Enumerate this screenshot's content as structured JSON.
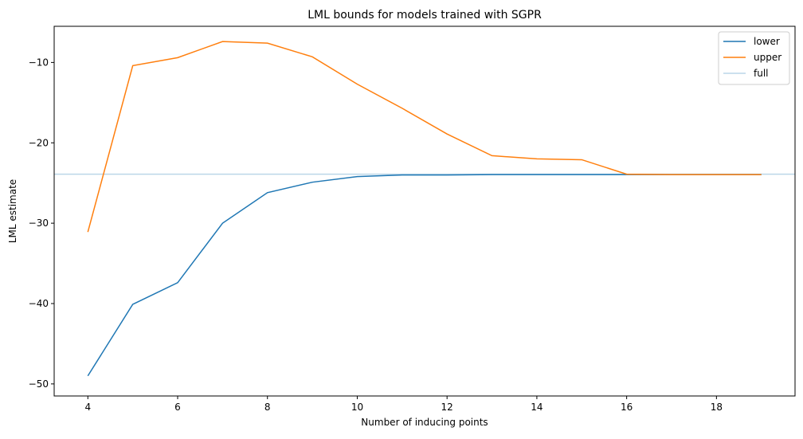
{
  "chart_data": {
    "type": "line",
    "title": "LML bounds for models trained with SGPR",
    "xlabel": "Number of inducing points",
    "ylabel": "LML estimate",
    "xlim": [
      3.25,
      19.75
    ],
    "ylim": [
      -51.5,
      -5.5
    ],
    "xticks": [
      4,
      6,
      8,
      10,
      12,
      14,
      16,
      18
    ],
    "yticks": [
      -10,
      -20,
      -30,
      -40,
      -50
    ],
    "xtick_labels": [
      "4",
      "6",
      "8",
      "10",
      "12",
      "14",
      "16",
      "18"
    ],
    "ytick_labels": [
      "−10",
      "−20",
      "−30",
      "−40",
      "−50"
    ],
    "grid": false,
    "legend_position": "top-right",
    "x": [
      4,
      5,
      6,
      7,
      8,
      9,
      10,
      11,
      12,
      13,
      14,
      15,
      16,
      17,
      18,
      19
    ],
    "series": [
      {
        "name": "lower",
        "color": "#1f77b4",
        "values": [
          -49.0,
          -40.1,
          -37.4,
          -30.0,
          -26.2,
          -24.9,
          -24.2,
          -24.0,
          -24.0,
          -23.95,
          -23.95,
          -23.95,
          -23.95,
          -23.95,
          -23.95,
          -23.95
        ]
      },
      {
        "name": "upper",
        "color": "#ff7f0e",
        "values": [
          -31.1,
          -10.4,
          -9.4,
          -7.4,
          -7.6,
          -9.3,
          -12.7,
          -15.7,
          -18.9,
          -21.6,
          -22.0,
          -22.1,
          -23.9,
          -23.95,
          -23.95,
          -23.95
        ]
      }
    ],
    "hlines": [
      {
        "name": "full",
        "color": "#1f77b4",
        "opacity": 0.3,
        "value": -23.9
      }
    ]
  }
}
